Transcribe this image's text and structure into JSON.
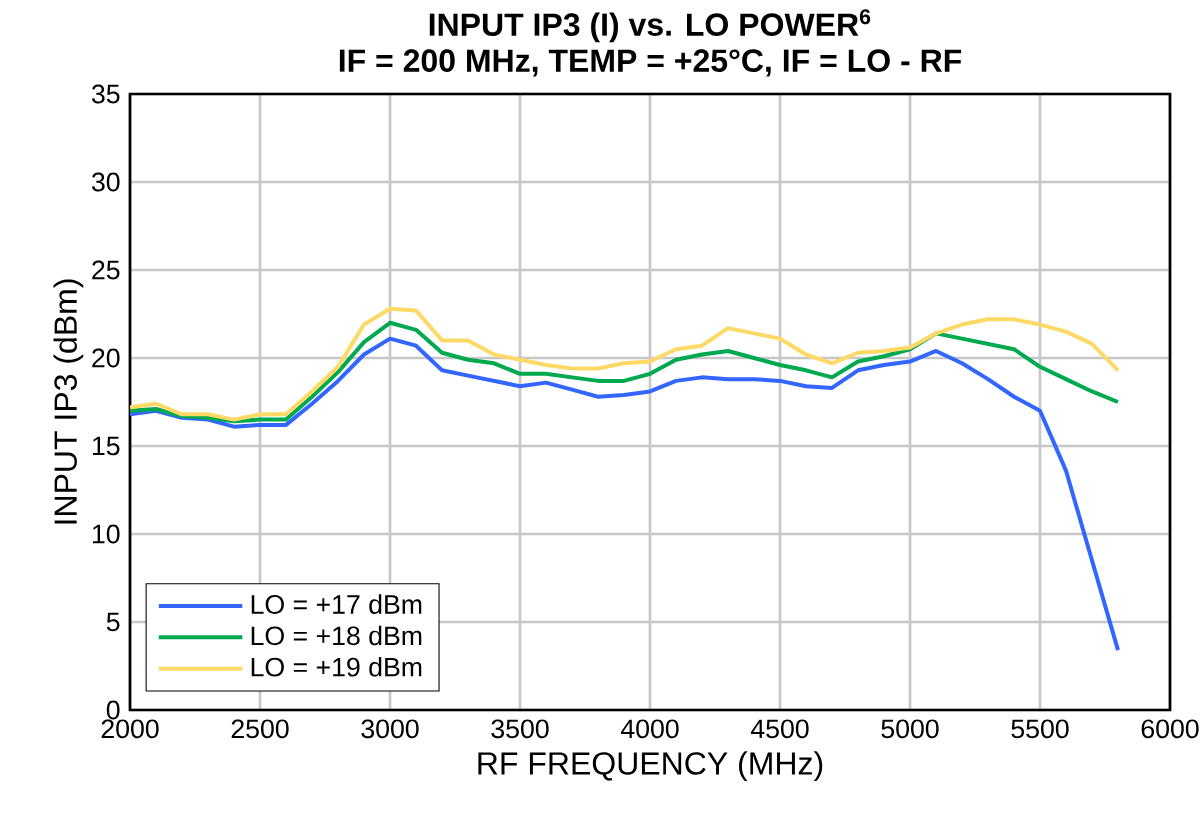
{
  "chart_data": {
    "type": "line",
    "title": "INPUT IP3 (I) vs. LO POWER$^{6}$",
    "subtitle": "IF = 200 MHz, TEMP = +25°C, IF = LO - RF",
    "xlabel": "RF FREQUENCY (MHz)",
    "ylabel": "INPUT IP3 (dBm)",
    "xlim": [
      2000,
      6000
    ],
    "xticks": [
      2000,
      2500,
      3000,
      3500,
      4000,
      4500,
      5000,
      5500,
      6000
    ],
    "ylim": [
      0,
      35
    ],
    "yticks": [
      0,
      5,
      10,
      15,
      20,
      25,
      30,
      35
    ],
    "grid": true,
    "legend": "bottom left",
    "line_style": "solid",
    "series": [
      {
        "name": "LO = +17 dBm",
        "color": "#3366ff",
        "x": [
          2000,
          2100,
          2200,
          2300,
          2400,
          2500,
          2600,
          2700,
          2800,
          2900,
          3000,
          3100,
          3200,
          3300,
          3400,
          3500,
          3600,
          3700,
          3800,
          3900,
          4000,
          4100,
          4200,
          4300,
          4400,
          4500,
          4600,
          4700,
          4800,
          4900,
          5000,
          5100,
          5200,
          5300,
          5400,
          5500,
          5600,
          5800
        ],
        "values": [
          16.8,
          17.0,
          16.6,
          16.5,
          16.1,
          16.2,
          16.2,
          17.4,
          18.7,
          20.2,
          21.1,
          20.7,
          19.3,
          19.0,
          18.7,
          18.4,
          18.6,
          18.2,
          17.8,
          17.9,
          18.1,
          18.7,
          18.9,
          18.8,
          18.8,
          18.7,
          18.4,
          18.3,
          19.3,
          19.6,
          19.8,
          20.4,
          19.7,
          18.8,
          17.8,
          17.0,
          13.6,
          3.4
        ]
      },
      {
        "name": "LO = +18 dBm",
        "color": "#00a84f",
        "x": [
          2000,
          2100,
          2200,
          2300,
          2400,
          2500,
          2600,
          2700,
          2800,
          2900,
          3000,
          3100,
          3200,
          3300,
          3400,
          3500,
          3600,
          3700,
          3800,
          3900,
          4000,
          4100,
          4200,
          4300,
          4400,
          4500,
          4600,
          4700,
          4800,
          4900,
          5000,
          5100,
          5200,
          5300,
          5400,
          5500,
          5600,
          5700,
          5800
        ],
        "values": [
          17.0,
          17.1,
          16.7,
          16.6,
          16.4,
          16.5,
          16.5,
          17.8,
          19.2,
          20.9,
          22.0,
          21.6,
          20.3,
          19.9,
          19.7,
          19.1,
          19.1,
          18.9,
          18.7,
          18.7,
          19.1,
          19.9,
          20.2,
          20.4,
          20.0,
          19.6,
          19.3,
          18.9,
          19.8,
          20.1,
          20.5,
          21.4,
          21.1,
          20.8,
          20.5,
          19.5,
          18.8,
          18.1,
          17.5
        ]
      },
      {
        "name": "LO = +19 dBm",
        "color": "#ffd966",
        "x": [
          2000,
          2100,
          2200,
          2300,
          2400,
          2500,
          2600,
          2700,
          2800,
          2900,
          3000,
          3100,
          3200,
          3300,
          3400,
          3500,
          3600,
          3700,
          3800,
          3900,
          4000,
          4100,
          4200,
          4300,
          4400,
          4500,
          4600,
          4700,
          4800,
          4900,
          5000,
          5100,
          5200,
          5300,
          5400,
          5500,
          5600,
          5700,
          5800
        ],
        "values": [
          17.2,
          17.4,
          16.8,
          16.8,
          16.5,
          16.8,
          16.8,
          18.1,
          19.5,
          21.9,
          22.8,
          22.7,
          21.0,
          21.0,
          20.2,
          19.9,
          19.6,
          19.4,
          19.4,
          19.7,
          19.8,
          20.5,
          20.7,
          21.7,
          21.4,
          21.1,
          20.2,
          19.7,
          20.3,
          20.4,
          20.6,
          21.4,
          21.9,
          22.2,
          22.2,
          21.9,
          21.5,
          20.8,
          19.3
        ]
      }
    ]
  }
}
